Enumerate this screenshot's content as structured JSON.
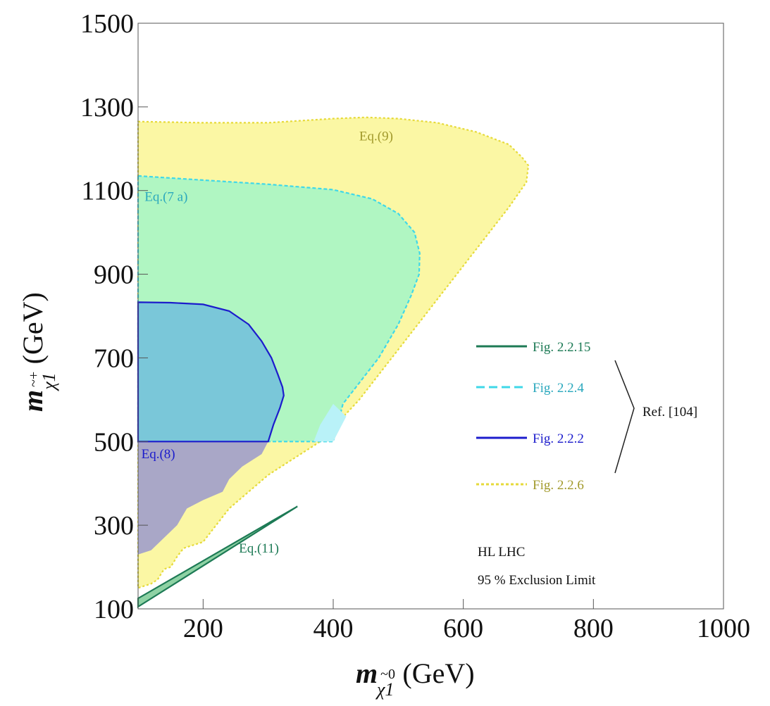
{
  "chart_data": {
    "type": "area",
    "xlabel": {
      "symbol": "m",
      "sub": "χ1",
      "sup": "~0",
      "unit": "(GeV)"
    },
    "ylabel": {
      "symbol": "m",
      "sub": "χ1",
      "sup": "~+",
      "unit": "(GeV)"
    },
    "xlim": [
      100,
      1000
    ],
    "ylim": [
      100,
      1500
    ],
    "xticks": [
      200,
      400,
      600,
      800,
      1000
    ],
    "yticks": [
      100,
      300,
      500,
      700,
      900,
      1100,
      1300,
      1500
    ],
    "grid": false,
    "series": [
      {
        "name": "Eq.(9)",
        "legend": "Fig. 2.2.6",
        "fill": "#fbf7a4",
        "stroke": "#e6da3a",
        "dash": "3,3",
        "label_at": [
          440,
          1220
        ],
        "label_color": "#a29a2c",
        "points": [
          [
            100,
            1265
          ],
          [
            200,
            1262
          ],
          [
            300,
            1262
          ],
          [
            400,
            1272
          ],
          [
            450,
            1275
          ],
          [
            500,
            1272
          ],
          [
            560,
            1262
          ],
          [
            620,
            1240
          ],
          [
            670,
            1210
          ],
          [
            690,
            1180
          ],
          [
            700,
            1160
          ],
          [
            697,
            1120
          ],
          [
            670,
            1060
          ],
          [
            630,
            980
          ],
          [
            590,
            900
          ],
          [
            550,
            820
          ],
          [
            510,
            740
          ],
          [
            470,
            660
          ],
          [
            440,
            600
          ],
          [
            410,
            550
          ],
          [
            380,
            500
          ],
          [
            350,
            470
          ],
          [
            320,
            440
          ],
          [
            300,
            420
          ],
          [
            270,
            380
          ],
          [
            240,
            340
          ],
          [
            220,
            300
          ],
          [
            200,
            260
          ],
          [
            170,
            245
          ],
          [
            160,
            225
          ],
          [
            150,
            200
          ],
          [
            140,
            195
          ],
          [
            130,
            170
          ],
          [
            120,
            160
          ],
          [
            100,
            150
          ]
        ]
      },
      {
        "name": "Eq.(7 a)",
        "legend": "Fig. 2.2.4",
        "fill": "#b0f6c2",
        "stroke": "#3fd8e8",
        "dash": "5,3",
        "label_at": [
          110,
          1075
        ],
        "label_color": "#2aa8bd",
        "points": [
          [
            100,
            1135
          ],
          [
            200,
            1125
          ],
          [
            300,
            1115
          ],
          [
            400,
            1102
          ],
          [
            460,
            1080
          ],
          [
            500,
            1045
          ],
          [
            525,
            1000
          ],
          [
            533,
            950
          ],
          [
            532,
            900
          ],
          [
            520,
            850
          ],
          [
            500,
            780
          ],
          [
            470,
            700
          ],
          [
            440,
            640
          ],
          [
            415,
            590
          ],
          [
            400,
            500
          ],
          [
            300,
            500
          ],
          [
            250,
            500
          ],
          [
            200,
            500
          ],
          [
            100,
            500
          ]
        ]
      },
      {
        "name": "",
        "legend": "",
        "fill": "#b9f2f8",
        "stroke": "none",
        "dash": "",
        "label_at": null,
        "label_color": "",
        "points": [
          [
            370,
            500
          ],
          [
            400,
            500
          ],
          [
            420,
            560
          ],
          [
            400,
            590
          ],
          [
            380,
            540
          ]
        ]
      },
      {
        "name": "",
        "legend": "",
        "fill": "#a9a7c7",
        "stroke": "none",
        "dash": "",
        "label_at": null,
        "label_color": "",
        "points": [
          [
            100,
            500
          ],
          [
            300,
            500
          ],
          [
            290,
            470
          ],
          [
            260,
            440
          ],
          [
            240,
            410
          ],
          [
            230,
            380
          ],
          [
            200,
            360
          ],
          [
            175,
            340
          ],
          [
            160,
            300
          ],
          [
            140,
            270
          ],
          [
            120,
            240
          ],
          [
            100,
            230
          ]
        ]
      },
      {
        "name": "Eq.(8)",
        "legend": "Fig. 2.2.2",
        "fill": "#7ac7d9",
        "stroke": "#1c1ccc",
        "dash": "",
        "label_at": [
          105,
          460
        ],
        "label_color": "#1c1ccc",
        "points": [
          [
            100,
            833
          ],
          [
            150,
            832
          ],
          [
            200,
            828
          ],
          [
            240,
            812
          ],
          [
            270,
            780
          ],
          [
            290,
            740
          ],
          [
            305,
            700
          ],
          [
            315,
            660
          ],
          [
            322,
            630
          ],
          [
            324,
            610
          ],
          [
            318,
            580
          ],
          [
            308,
            540
          ],
          [
            300,
            500
          ],
          [
            100,
            500
          ]
        ]
      },
      {
        "name": "Eq.(11)",
        "legend": "Fig. 2.2.15",
        "fill": "#8ed2a4",
        "stroke": "#1d7a55",
        "dash": "",
        "label_at": [
          255,
          235
        ],
        "label_color": "#1d7a55",
        "points": [
          [
            100,
            105
          ],
          [
            345,
            345
          ],
          [
            100,
            125
          ]
        ]
      }
    ],
    "legend_order": [
      "Fig. 2.2.15",
      "Fig. 2.2.4",
      "Fig. 2.2.2",
      "Fig. 2.2.6"
    ],
    "reference": "Ref. [104]",
    "annotations": [
      "HL LHC",
      "95 % Exclusion Limit"
    ]
  }
}
